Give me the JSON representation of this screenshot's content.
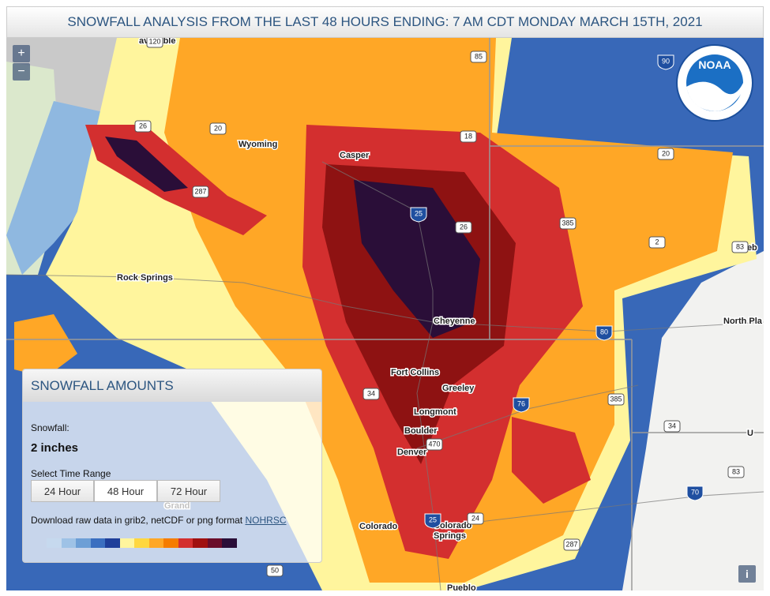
{
  "header": {
    "title": "SNOWFALL ANALYSIS FROM THE LAST 48 HOURS ENDING: 7 AM CDT MONDAY MARCH 15TH, 2021"
  },
  "map": {
    "zoom": [
      "+",
      "−"
    ],
    "logo": "NOAA",
    "info": "i",
    "places": [
      {
        "lines": [
          "Wyoming"
        ]
      },
      {
        "lines": [
          "Casper"
        ]
      },
      {
        "lines": [
          "Rock Springs"
        ]
      },
      {
        "lines": [
          "Cheyenne"
        ]
      },
      {
        "lines": [
          "North Pla"
        ]
      },
      {
        "lines": [
          "Neb"
        ]
      },
      {
        "lines": [
          "Fort Collins"
        ]
      },
      {
        "lines": [
          "Greeley"
        ]
      },
      {
        "lines": [
          "Longmont"
        ]
      },
      {
        "lines": [
          "Boulder"
        ]
      },
      {
        "lines": [
          "Denver"
        ]
      },
      {
        "lines": [
          "Colorado"
        ]
      },
      {
        "lines": [
          "Colorado",
          "Springs"
        ]
      },
      {
        "lines": [
          "Pueblo"
        ]
      },
      {
        "lines": [
          "available"
        ]
      },
      {
        "lines": [
          "U"
        ]
      },
      {
        "lines": [
          "Grand"
        ]
      }
    ],
    "highways": [
      120,
      85,
      90,
      26,
      20,
      18,
      287,
      25,
      26,
      385,
      20,
      2,
      83,
      80,
      34,
      76,
      385,
      34,
      470,
      25,
      24,
      83,
      70,
      287,
      50
    ]
  },
  "panel": {
    "title": "SNOWFALL AMOUNTS",
    "field_label": "Snowfall:",
    "value": "2 inches",
    "range_label": "Select Time Range",
    "ranges": [
      "24 Hour",
      "48 Hour",
      "72 Hour"
    ],
    "selected_range": 1,
    "download_text": "Download raw data in grib2, netCDF or png format",
    "download_link": "NOHRSC",
    "legend_colors": [
      "#c6d9ee",
      "#9ec2e6",
      "#6d9fd6",
      "#3b6fc0",
      "#1f3f9a",
      "#fff59d",
      "#ffd740",
      "#ffa726",
      "#f57c00",
      "#d32f2f",
      "#a01010",
      "#6a0d2a",
      "#2a0e38"
    ]
  }
}
